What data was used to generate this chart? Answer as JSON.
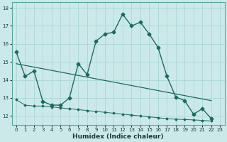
{
  "xlabel": "Humidex (Indice chaleur)",
  "xlim": [
    -0.5,
    23.5
  ],
  "ylim": [
    11.5,
    18.3
  ],
  "yticks": [
    12,
    13,
    14,
    15,
    16,
    17,
    18
  ],
  "xticks": [
    0,
    1,
    2,
    3,
    4,
    5,
    6,
    7,
    8,
    9,
    10,
    11,
    12,
    13,
    14,
    15,
    16,
    17,
    18,
    19,
    20,
    21,
    22,
    23
  ],
  "bg_color": "#cce9e9",
  "line_color": "#1a6b5f",
  "grid_color": "#b0d8d8",
  "curve1_x": [
    0,
    1,
    2,
    3,
    4,
    5,
    6,
    7,
    8,
    9,
    10,
    11,
    12,
    13,
    14,
    15,
    16,
    17,
    18,
    19,
    20,
    21,
    22
  ],
  "curve1_y": [
    15.55,
    14.2,
    14.5,
    12.8,
    12.6,
    12.6,
    13.0,
    14.9,
    14.3,
    16.15,
    16.55,
    16.65,
    17.65,
    17.0,
    17.2,
    16.55,
    15.8,
    14.2,
    13.05,
    12.85,
    12.1,
    12.4,
    11.85
  ],
  "trend_x": [
    0,
    22
  ],
  "trend_y": [
    14.9,
    12.85
  ],
  "lower_x": [
    0,
    1,
    2,
    3,
    4,
    5,
    6,
    7,
    8,
    9,
    10,
    11,
    12,
    13,
    14,
    15,
    16,
    17,
    18,
    19,
    20,
    21,
    22
  ],
  "lower_y": [
    12.9,
    12.6,
    12.55,
    12.55,
    12.5,
    12.45,
    12.4,
    12.35,
    12.3,
    12.25,
    12.2,
    12.15,
    12.1,
    12.05,
    12.0,
    11.95,
    11.9,
    11.85,
    11.82,
    11.8,
    11.78,
    11.75,
    11.72
  ]
}
